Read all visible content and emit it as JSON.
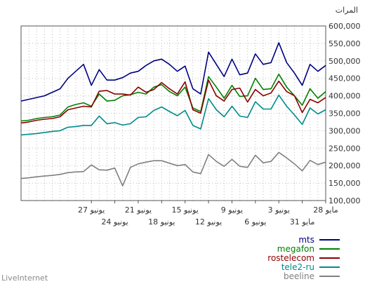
{
  "footer_text": "LiveInternet",
  "chart_data": {
    "type": "line",
    "unit_label": "المرات",
    "ylim": [
      100000,
      600000
    ],
    "y_ticks": [
      100000,
      150000,
      200000,
      250000,
      300000,
      350000,
      400000,
      450000,
      500000,
      550000,
      600000
    ],
    "y_tick_labels": [
      "100,000",
      "150,000",
      "200,000",
      "250,000",
      "300,000",
      "350,000",
      "400,000",
      "450,000",
      "500,000",
      "550,000",
      "600,000"
    ],
    "x_direction": "right-to-left",
    "x_count": 40,
    "grid": true,
    "legend_position": "bottom-right",
    "x_tick_labels": [
      {
        "index": 0,
        "label": "28 مايو"
      },
      {
        "index": 3,
        "label": "31 مايو"
      },
      {
        "index": 6,
        "label": "3 يونيو"
      },
      {
        "index": 9,
        "label": "6 يونيو"
      },
      {
        "index": 12,
        "label": "9 يونيو"
      },
      {
        "index": 15,
        "label": "12 يونيو"
      },
      {
        "index": 18,
        "label": "15 يونيو"
      },
      {
        "index": 21,
        "label": "18 يونيو"
      },
      {
        "index": 24,
        "label": "21 يونيو"
      },
      {
        "index": 27,
        "label": "24 يونيو"
      },
      {
        "index": 30,
        "label": "27 يونيو"
      }
    ],
    "series": [
      {
        "name": "mts",
        "color": "#000080",
        "values": [
          487000,
          470000,
          490000,
          430000,
          465000,
          495000,
          552000,
          495000,
          490000,
          520000,
          465000,
          460000,
          505000,
          455000,
          490000,
          525000,
          405000,
          420000,
          485000,
          470000,
          490000,
          505000,
          500000,
          487000,
          470000,
          465000,
          452000,
          445000,
          445000,
          475000,
          430000,
          490000,
          470000,
          450000,
          420000,
          410000,
          400000,
          395000,
          390000,
          385000
        ]
      },
      {
        "name": "megafon",
        "color": "#008000",
        "values": [
          412000,
          393000,
          420000,
          373000,
          400000,
          425000,
          462000,
          420000,
          418000,
          450000,
          400000,
          398000,
          430000,
          393000,
          425000,
          455000,
          355000,
          365000,
          425000,
          400000,
          412000,
          432000,
          425000,
          405000,
          410000,
          403000,
          400000,
          387000,
          385000,
          405000,
          370000,
          380000,
          375000,
          368000,
          345000,
          340000,
          338000,
          335000,
          330000,
          328000
        ]
      },
      {
        "name": "rostelecom",
        "color": "#8b0000",
        "values": [
          395000,
          380000,
          390000,
          352000,
          400000,
          412000,
          442000,
          408000,
          400000,
          418000,
          382000,
          422000,
          418000,
          385000,
          400000,
          445000,
          350000,
          360000,
          440000,
          405000,
          420000,
          438000,
          418000,
          410000,
          425000,
          402000,
          405000,
          405000,
          415000,
          413000,
          368000,
          370000,
          365000,
          360000,
          340000,
          335000,
          333000,
          330000,
          325000,
          322000
        ]
      },
      {
        "name": "tele2-ru",
        "color": "#008b8b",
        "values": [
          360000,
          348000,
          365000,
          318000,
          345000,
          370000,
          402000,
          362000,
          362000,
          383000,
          338000,
          342000,
          370000,
          340000,
          360000,
          392000,
          305000,
          315000,
          358000,
          343000,
          355000,
          368000,
          358000,
          340000,
          338000,
          320000,
          316000,
          323000,
          320000,
          342000,
          315000,
          315000,
          312000,
          310000,
          300000,
          298000,
          295000,
          292000,
          290000,
          288000
        ]
      },
      {
        "name": "beeline",
        "color": "#808080",
        "values": [
          210000,
          203000,
          215000,
          185000,
          205000,
          222000,
          238000,
          212000,
          208000,
          230000,
          195000,
          198000,
          218000,
          198000,
          212000,
          232000,
          177000,
          182000,
          203000,
          200000,
          207000,
          214000,
          214000,
          210000,
          205000,
          195000,
          142000,
          193000,
          187000,
          188000,
          202000,
          183000,
          182000,
          180000,
          175000,
          172000,
          170000,
          168000,
          165000,
          163000
        ]
      }
    ]
  }
}
